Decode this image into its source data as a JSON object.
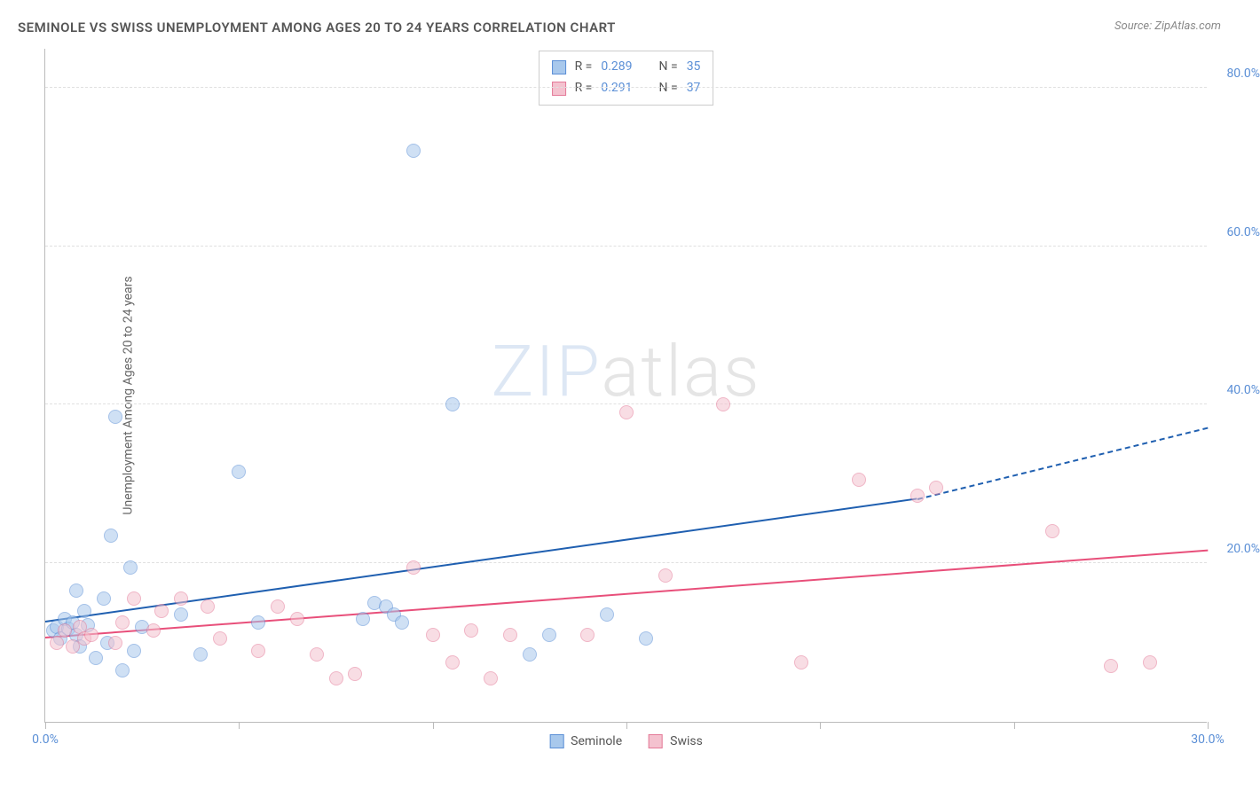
{
  "title": "SEMINOLE VS SWISS UNEMPLOYMENT AMONG AGES 20 TO 24 YEARS CORRELATION CHART",
  "source": "Source: ZipAtlas.com",
  "y_label": "Unemployment Among Ages 20 to 24 years",
  "watermark": {
    "part1": "ZIP",
    "part2": "atlas"
  },
  "chart": {
    "type": "scatter",
    "background_color": "#ffffff",
    "grid_color": "#e0e0e0",
    "axis_color": "#bbbbbb",
    "xlim": [
      0,
      30
    ],
    "ylim": [
      0,
      85
    ],
    "x_ticks": [
      0,
      5,
      10,
      15,
      20,
      25,
      30
    ],
    "x_tick_labels": {
      "0": "0.0%",
      "30": "30.0%"
    },
    "y_gridlines": [
      20,
      40,
      60,
      80
    ],
    "y_tick_labels": {
      "20": "20.0%",
      "40": "40.0%",
      "60": "60.0%",
      "80": "80.0%"
    },
    "label_color": "#5b8fd6",
    "label_fontsize": 14,
    "marker_radius": 8,
    "marker_opacity": 0.55,
    "series": [
      {
        "name": "Seminole",
        "fill": "#a8c8ec",
        "stroke": "#5b8fd6",
        "trend_color": "#1f5fb0",
        "R": "0.289",
        "N": "35",
        "trend": {
          "x1": 0,
          "y1": 12.5,
          "x2": 22.5,
          "y2": 28.0,
          "dash_x2": 30,
          "dash_y2": 37.0
        },
        "points": [
          [
            0.2,
            11.5
          ],
          [
            0.3,
            12.0
          ],
          [
            0.4,
            10.5
          ],
          [
            0.5,
            13.0
          ],
          [
            0.6,
            11.8
          ],
          [
            0.7,
            12.5
          ],
          [
            0.8,
            16.5
          ],
          [
            0.8,
            11.0
          ],
          [
            0.9,
            9.5
          ],
          [
            1.0,
            14.0
          ],
          [
            1.1,
            12.2
          ],
          [
            1.3,
            8.0
          ],
          [
            1.5,
            15.5
          ],
          [
            1.6,
            10.0
          ],
          [
            1.7,
            23.5
          ],
          [
            1.8,
            38.5
          ],
          [
            2.0,
            6.5
          ],
          [
            2.2,
            19.5
          ],
          [
            2.3,
            9.0
          ],
          [
            2.5,
            12.0
          ],
          [
            3.5,
            13.5
          ],
          [
            4.0,
            8.5
          ],
          [
            5.0,
            31.5
          ],
          [
            5.5,
            12.5
          ],
          [
            8.2,
            13.0
          ],
          [
            8.5,
            15.0
          ],
          [
            8.8,
            14.5
          ],
          [
            9.0,
            13.5
          ],
          [
            9.2,
            12.5
          ],
          [
            9.5,
            72.0
          ],
          [
            10.5,
            40.0
          ],
          [
            12.5,
            8.5
          ],
          [
            13.0,
            11.0
          ],
          [
            14.5,
            13.5
          ],
          [
            15.5,
            10.5
          ]
        ]
      },
      {
        "name": "Swiss",
        "fill": "#f4c2cf",
        "stroke": "#e47a98",
        "trend_color": "#e84f7a",
        "R": "0.291",
        "N": "37",
        "trend": {
          "x1": 0,
          "y1": 10.5,
          "x2": 30,
          "y2": 21.5
        },
        "points": [
          [
            0.3,
            10.0
          ],
          [
            0.5,
            11.5
          ],
          [
            0.7,
            9.5
          ],
          [
            0.9,
            12.0
          ],
          [
            1.0,
            10.5
          ],
          [
            1.2,
            11.0
          ],
          [
            1.8,
            10.0
          ],
          [
            2.0,
            12.5
          ],
          [
            2.3,
            15.5
          ],
          [
            2.8,
            11.5
          ],
          [
            3.0,
            14.0
          ],
          [
            3.5,
            15.5
          ],
          [
            4.2,
            14.5
          ],
          [
            4.5,
            10.5
          ],
          [
            5.5,
            9.0
          ],
          [
            6.0,
            14.5
          ],
          [
            6.5,
            13.0
          ],
          [
            7.0,
            8.5
          ],
          [
            7.5,
            5.5
          ],
          [
            8.0,
            6.0
          ],
          [
            9.5,
            19.5
          ],
          [
            10.0,
            11.0
          ],
          [
            10.5,
            7.5
          ],
          [
            11.0,
            11.5
          ],
          [
            11.5,
            5.5
          ],
          [
            12.0,
            11.0
          ],
          [
            14.0,
            11.0
          ],
          [
            15.0,
            39.0
          ],
          [
            16.0,
            18.5
          ],
          [
            17.5,
            40.0
          ],
          [
            19.5,
            7.5
          ],
          [
            21.0,
            30.5
          ],
          [
            22.5,
            28.5
          ],
          [
            23.0,
            29.5
          ],
          [
            26.0,
            24.0
          ],
          [
            27.5,
            7.0
          ],
          [
            28.5,
            7.5
          ]
        ]
      }
    ]
  },
  "corr_legend": {
    "R_label": "R =",
    "N_label": "N ="
  },
  "series_legend_labels": [
    "Seminole",
    "Swiss"
  ]
}
